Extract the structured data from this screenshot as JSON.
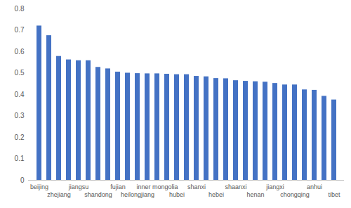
{
  "chart_data": {
    "type": "bar",
    "categories": [
      "beijing",
      null,
      "zhejiang",
      null,
      "jiangsu",
      null,
      "shandong",
      null,
      "fujian",
      null,
      "heilongjiang",
      null,
      "inner mongolia",
      null,
      "hubei",
      null,
      "shanxi",
      null,
      "hebei",
      null,
      "shaanxi",
      null,
      "henan",
      null,
      "jiangxi",
      null,
      "chongqing",
      null,
      "anhui",
      null,
      "tibet"
    ],
    "values": [
      0.72,
      0.675,
      0.578,
      0.562,
      0.558,
      0.558,
      0.527,
      0.52,
      0.505,
      0.5,
      0.498,
      0.497,
      0.497,
      0.495,
      0.493,
      0.493,
      0.485,
      0.483,
      0.475,
      0.474,
      0.465,
      0.462,
      0.46,
      0.458,
      0.452,
      0.445,
      0.445,
      0.422,
      0.42,
      0.392,
      0.375
    ],
    "color": "#4472c4",
    "ylim": [
      0,
      0.8
    ],
    "yticks": [
      0,
      0.1,
      0.2,
      0.3,
      0.4,
      0.5,
      0.6,
      0.7,
      0.8
    ],
    "grid": false
  }
}
